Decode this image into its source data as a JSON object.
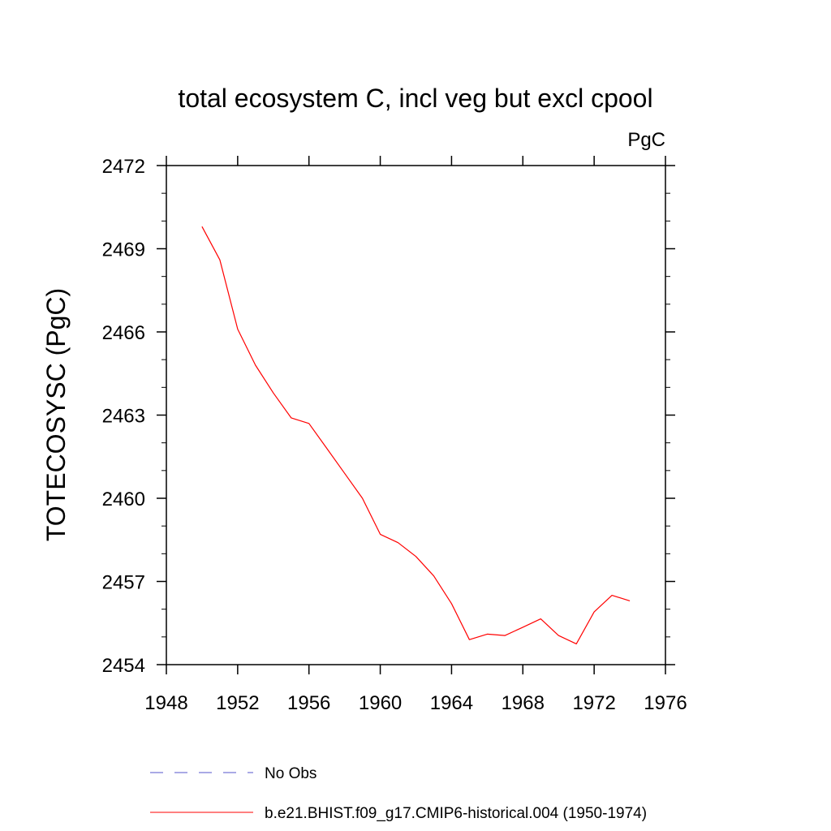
{
  "chart_data": {
    "type": "line",
    "title": "total ecosystem C, incl veg but excl cpool",
    "units_label": "PgC",
    "ylabel": "TOTECOSYSC  (PgC)",
    "xlabel": "",
    "xlim": [
      1948,
      1976
    ],
    "ylim": [
      2454,
      2472
    ],
    "xticks": [
      1948,
      1952,
      1956,
      1960,
      1964,
      1968,
      1972,
      1976
    ],
    "yticks": [
      2454,
      2457,
      2460,
      2463,
      2466,
      2469,
      2472
    ],
    "grid": false,
    "legend_position": "bottom",
    "series": [
      {
        "name": "b.e21.BHIST.f09_g17.CMIP6-historical.004 (1950-1974)",
        "color": "#ff0000",
        "style": "solid",
        "x": [
          1950,
          1951,
          1952,
          1953,
          1954,
          1955,
          1956,
          1957,
          1958,
          1959,
          1960,
          1961,
          1962,
          1963,
          1964,
          1965,
          1966,
          1967,
          1968,
          1969,
          1970,
          1971,
          1972,
          1973,
          1974
        ],
        "y": [
          2469.8,
          2468.6,
          2466.1,
          2464.8,
          2463.8,
          2462.9,
          2462.7,
          2461.8,
          2460.9,
          2460.0,
          2458.7,
          2458.4,
          2457.9,
          2457.2,
          2456.2,
          2454.9,
          2455.1,
          2455.05,
          2455.35,
          2455.65,
          2455.05,
          2454.75,
          2455.9,
          2456.5,
          2456.3
        ]
      }
    ],
    "legend": [
      {
        "label": "No Obs",
        "color": "#5555cc",
        "style": "dashed"
      },
      {
        "label": "b.e21.BHIST.f09_g17.CMIP6-historical.004 (1950-1974)",
        "color": "#ff0000",
        "style": "solid"
      }
    ]
  }
}
